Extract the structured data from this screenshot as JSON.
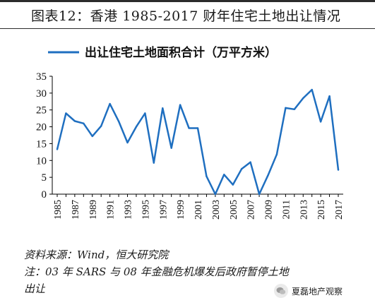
{
  "figure": {
    "title": "图表12：香港 1985-2017 财年住宅土地出让情况",
    "source": "资料来源：Wind，恒大研究院",
    "note_line1": "注：03 年 SARS 与 08 年金融危机爆发后政府暂停土地",
    "note_line2": "出让",
    "watermark": "夏磊地产观察"
  },
  "colors": {
    "series": "#1f6fc0",
    "axis": "#000000"
  },
  "chart_data": {
    "type": "line",
    "title": "",
    "xlabel": "",
    "ylabel": "",
    "ylim": [
      0,
      35
    ],
    "yticks": [
      0,
      5,
      10,
      15,
      20,
      25,
      30,
      35
    ],
    "xticks": [
      "1985",
      "1987",
      "1989",
      "1991",
      "1993",
      "1995",
      "1997",
      "1999",
      "2001",
      "2003",
      "2005",
      "2007",
      "2009",
      "2011",
      "2013",
      "2015",
      "2017"
    ],
    "grid": false,
    "legend_position": "top",
    "x": [
      "1985",
      "1986",
      "1987",
      "1988",
      "1989",
      "1990",
      "1991",
      "1992",
      "1993",
      "1994",
      "1995",
      "1996",
      "1997",
      "1998",
      "1999",
      "2000",
      "2001",
      "2002",
      "2003",
      "2004",
      "2005",
      "2006",
      "2007",
      "2008",
      "2009",
      "2010",
      "2011",
      "2012",
      "2013",
      "2014",
      "2015",
      "2016",
      "2017"
    ],
    "series": [
      {
        "name": "出让住宅土地面积合计（万平方米）",
        "values": [
          13.3,
          24.0,
          21.7,
          21.0,
          17.2,
          20.2,
          26.8,
          21.6,
          15.3,
          20.0,
          24.0,
          9.3,
          25.5,
          13.7,
          26.5,
          19.6,
          19.6,
          5.3,
          0.0,
          5.8,
          2.8,
          7.5,
          9.5,
          0.0,
          5.6,
          11.8,
          25.6,
          25.2,
          28.5,
          31.0,
          21.5,
          29.1,
          7.2
        ]
      }
    ]
  }
}
